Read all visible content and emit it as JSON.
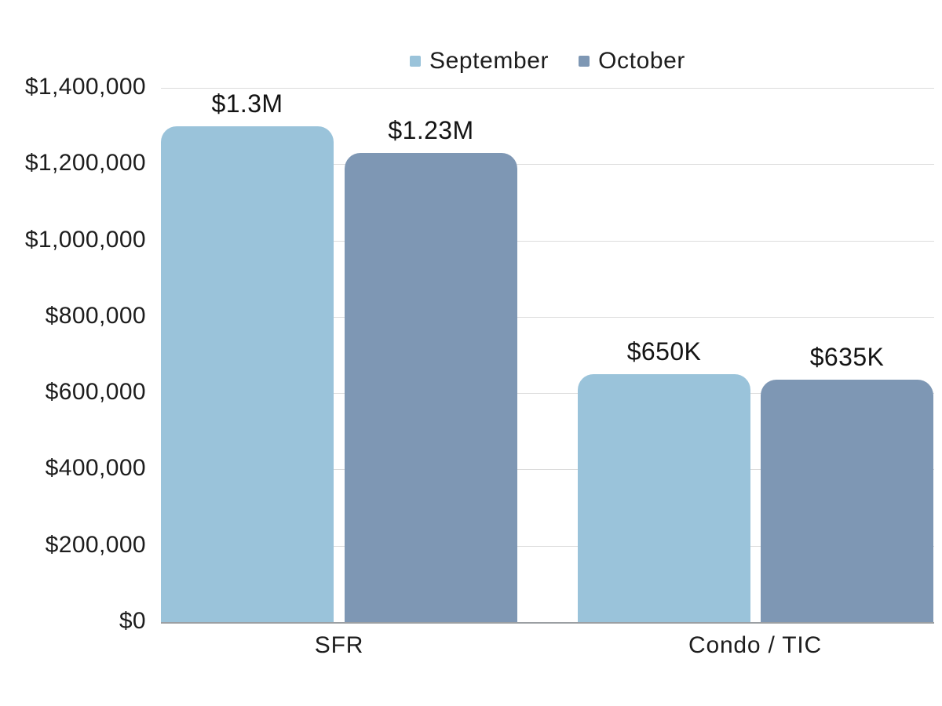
{
  "colors": {
    "september_series": "#9ac3da",
    "october_series": "#7e97b4",
    "gridline": "#dcdcdc",
    "axis_line": "#9b9fa3",
    "text": "#1d1d1d",
    "background": "#ffffff"
  },
  "legend": {
    "items": [
      {
        "label": "September",
        "color": "#9ac3da"
      },
      {
        "label": "October",
        "color": "#7e97b4"
      }
    ]
  },
  "chart_data": {
    "type": "bar",
    "title": "",
    "xlabel": "",
    "ylabel": "",
    "categories": [
      "SFR",
      "Condo / TIC"
    ],
    "series": [
      {
        "name": "September",
        "color": "#9ac3da",
        "values": [
          1300000,
          650000
        ],
        "data_labels": [
          "$1.3M",
          "$650K"
        ]
      },
      {
        "name": "October",
        "color": "#7e97b4",
        "values": [
          1230000,
          635000
        ],
        "data_labels": [
          "$1.23M",
          "$635K"
        ]
      }
    ],
    "ylim": [
      0,
      1400000
    ],
    "ytick_step": 200000,
    "ytick_labels": [
      "$0",
      "$200,000",
      "$400,000",
      "$600,000",
      "$800,000",
      "$1,000,000",
      "$1,200,000",
      "$1,400,000"
    ],
    "grid": true,
    "legend_position": "top"
  }
}
